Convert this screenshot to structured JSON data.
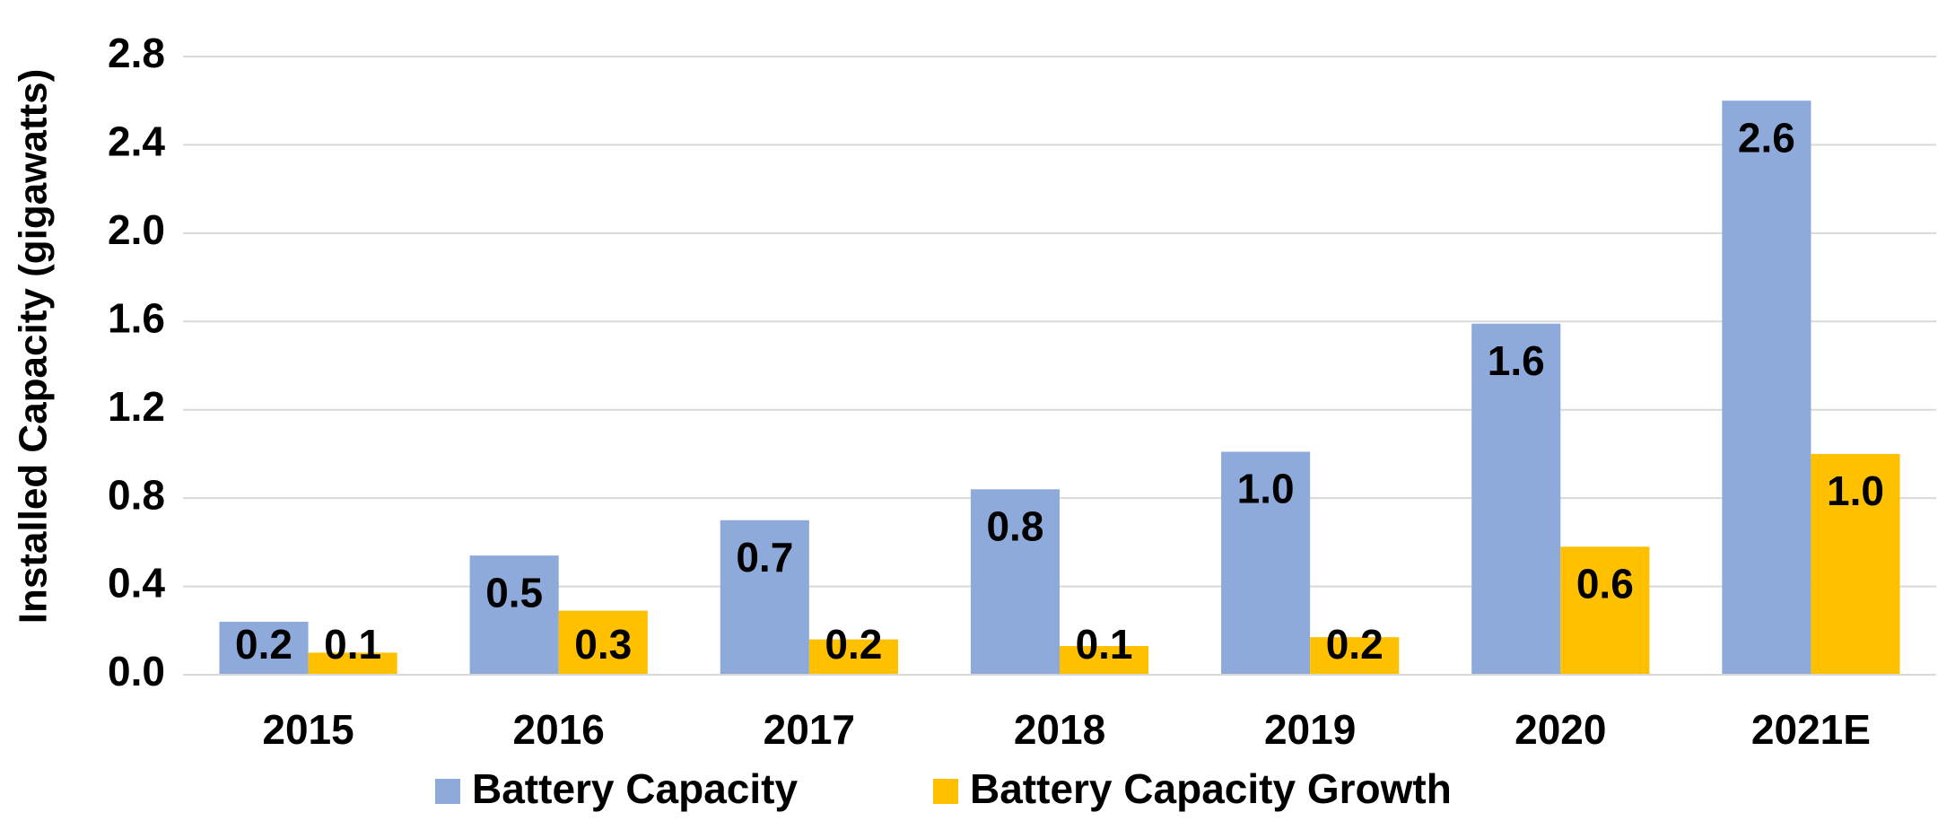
{
  "chart_data": {
    "type": "bar",
    "y_label": "Installed Capacity (gigawatts)",
    "categories": [
      "2015",
      "2016",
      "2017",
      "2018",
      "2019",
      "2020",
      "2021E"
    ],
    "series": [
      {
        "name": "Battery Capacity",
        "color": "#8eaadb",
        "values": [
          0.24,
          0.54,
          0.7,
          0.84,
          1.01,
          1.59,
          2.6
        ],
        "value_labels": [
          "0.2",
          "0.5",
          "0.7",
          "0.8",
          "1.0",
          "1.6",
          "2.6"
        ]
      },
      {
        "name": "Battery Capacity Growth",
        "color": "#ffc000",
        "values": [
          0.1,
          0.29,
          0.16,
          0.13,
          0.17,
          0.58,
          1.0
        ],
        "value_labels": [
          "0.1",
          "0.3",
          "0.2",
          "0.1",
          "0.2",
          "0.6",
          "1.0"
        ]
      }
    ],
    "ylim": [
      0,
      2.8
    ],
    "yticks": [
      {
        "value": 0,
        "label": "0.0"
      },
      0.4,
      0.8,
      1.2,
      1.6,
      {
        "value": 2,
        "label": "2.0"
      },
      2.4,
      2.8
    ],
    "grid": true,
    "legend": "bottom"
  }
}
